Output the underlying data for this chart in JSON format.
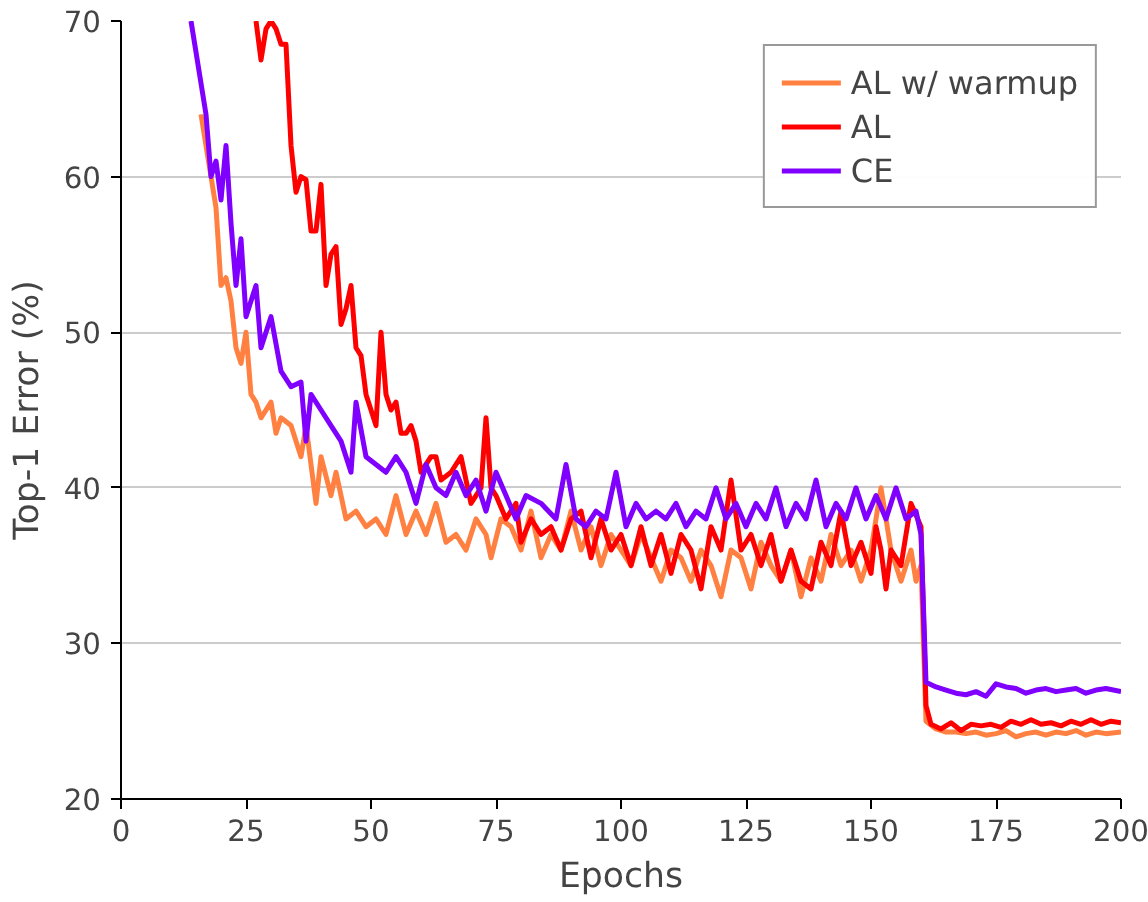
{
  "chart_data": {
    "type": "line",
    "xlabel": "Epochs",
    "ylabel": "Top-1 Error (%)",
    "xlim": [
      0,
      200
    ],
    "ylim": [
      20,
      70
    ],
    "xticks": [
      0,
      25,
      50,
      75,
      100,
      125,
      150,
      175,
      200
    ],
    "yticks": [
      20,
      30,
      40,
      50,
      60,
      70
    ],
    "grid": "y",
    "legend": "top right",
    "marker": "none",
    "line_style": "solid",
    "series": [
      {
        "name": "AL w/ warmup",
        "color": "#ff8040",
        "x": [
          16,
          17,
          19,
          20,
          21,
          22,
          23,
          24,
          25,
          26,
          27,
          28,
          30,
          31,
          32,
          34,
          36,
          37,
          38,
          39,
          40,
          42,
          43,
          45,
          47,
          49,
          51,
          53,
          55,
          57,
          59,
          61,
          63,
          65,
          67,
          69,
          71,
          73,
          74,
          76,
          78,
          80,
          82,
          84,
          86,
          88,
          90,
          92,
          94,
          96,
          98,
          100,
          102,
          104,
          106,
          108,
          110,
          112,
          114,
          116,
          118,
          120,
          122,
          124,
          126,
          128,
          130,
          132,
          134,
          136,
          138,
          140,
          142,
          144,
          146,
          148,
          150,
          152,
          154,
          156,
          158,
          159,
          160,
          161,
          163,
          165,
          167,
          169,
          171,
          173,
          175,
          177,
          179,
          181,
          183,
          185,
          187,
          189,
          191,
          193,
          195,
          197,
          200
        ],
        "values": [
          64,
          62,
          58,
          53,
          53.5,
          52,
          49,
          48,
          50,
          46,
          45.5,
          44.5,
          45.5,
          43.5,
          44.5,
          44,
          42,
          44,
          41.5,
          39,
          42,
          39.5,
          41,
          38,
          38.5,
          37.5,
          38,
          37,
          39.5,
          37,
          38.5,
          37,
          39,
          36.5,
          37,
          36,
          38,
          37,
          35.5,
          38,
          37.5,
          36,
          38.5,
          35.5,
          37,
          36,
          38.5,
          36,
          37.5,
          35,
          37,
          36,
          35,
          37,
          35.5,
          34,
          36,
          35.5,
          34,
          36,
          35,
          33,
          36,
          35.5,
          33.5,
          36.5,
          35,
          34,
          36,
          33,
          35.5,
          34,
          37,
          35,
          36,
          34,
          36,
          40,
          36,
          34,
          36,
          34,
          35,
          25,
          24.5,
          24.3,
          24.3,
          24.2,
          24.3,
          24.1,
          24.2,
          24.4,
          24,
          24.2,
          24.3,
          24.1,
          24.3,
          24.2,
          24.4,
          24.1,
          24.3,
          24.2,
          24.3
        ]
      },
      {
        "name": "AL",
        "color": "#ff0000",
        "x": [
          27,
          28,
          29,
          30,
          31,
          32,
          33,
          34,
          35,
          36,
          37,
          38,
          39,
          40,
          41,
          42,
          43,
          44,
          45,
          46,
          47,
          48,
          49,
          50,
          51,
          52,
          53,
          54,
          55,
          56,
          57,
          58,
          59,
          60,
          61,
          62,
          63,
          64,
          66,
          68,
          69,
          70,
          72,
          73,
          74,
          75,
          77,
          79,
          80,
          82,
          84,
          86,
          88,
          90,
          92,
          94,
          96,
          98,
          100,
          102,
          104,
          106,
          108,
          110,
          112,
          114,
          116,
          118,
          120,
          122,
          124,
          126,
          128,
          130,
          132,
          134,
          136,
          138,
          140,
          142,
          144,
          146,
          148,
          150,
          151,
          152,
          153,
          154,
          156,
          158,
          160,
          161,
          162,
          164,
          166,
          168,
          170,
          172,
          174,
          176,
          178,
          180,
          182,
          184,
          186,
          188,
          190,
          192,
          194,
          196,
          198,
          200
        ],
        "values": [
          70,
          67.5,
          69.5,
          70,
          69.5,
          68.5,
          68.5,
          62,
          59,
          60,
          59.8,
          56.5,
          56.5,
          59.5,
          53,
          55,
          55.5,
          50.5,
          51.5,
          53,
          49,
          48.5,
          46,
          45,
          44,
          50,
          46,
          45,
          45.5,
          43.5,
          43.5,
          44,
          43,
          41,
          41.5,
          42,
          42,
          40.5,
          41,
          42,
          40.5,
          39,
          40,
          44.5,
          40,
          39.5,
          38,
          39,
          36.5,
          38,
          37,
          37.5,
          36,
          38,
          38.5,
          35.5,
          38,
          36,
          37,
          35,
          37.5,
          35,
          37,
          34.5,
          37,
          36,
          33.5,
          37.5,
          36,
          40.5,
          36,
          37,
          35,
          37,
          34,
          36,
          34,
          33.5,
          36.5,
          35,
          38.5,
          35,
          36.5,
          34.5,
          37.5,
          36,
          33.5,
          36,
          35,
          39,
          37.5,
          26,
          24.8,
          24.5,
          24.9,
          24.4,
          24.8,
          24.7,
          24.8,
          24.6,
          25,
          24.8,
          25.1,
          24.8,
          24.9,
          24.7,
          25,
          24.8,
          25.1,
          24.8,
          25,
          24.9
        ]
      },
      {
        "name": "CE",
        "color": "#8000ff",
        "x": [
          14,
          17,
          18,
          19,
          20,
          21,
          22,
          23,
          24,
          25,
          26,
          27,
          28,
          30,
          32,
          34,
          36,
          37,
          38,
          40,
          42,
          44,
          46,
          47,
          49,
          51,
          53,
          55,
          57,
          59,
          61,
          63,
          65,
          67,
          69,
          71,
          73,
          75,
          77,
          79,
          81,
          84,
          87,
          89,
          91,
          93,
          95,
          97,
          99,
          101,
          103,
          105,
          107,
          109,
          111,
          113,
          115,
          117,
          119,
          121,
          123,
          125,
          127,
          129,
          131,
          133,
          135,
          137,
          139,
          141,
          143,
          145,
          147,
          149,
          151,
          153,
          155,
          157,
          159,
          160,
          161,
          163,
          165,
          167,
          169,
          171,
          173,
          175,
          177,
          179,
          181,
          183,
          185,
          187,
          189,
          191,
          193,
          195,
          197,
          200
        ],
        "values": [
          70,
          64,
          60,
          61,
          58.5,
          62,
          57,
          53,
          56,
          51,
          52,
          53,
          49,
          51,
          47.5,
          46.5,
          46.8,
          43,
          46,
          45,
          44,
          43,
          41,
          45.5,
          42,
          41.5,
          41,
          42,
          41,
          39,
          41.5,
          40,
          39.5,
          41,
          39.5,
          40.5,
          38.5,
          41,
          39.5,
          38,
          39.5,
          39,
          38,
          41.5,
          38,
          37.5,
          38.5,
          38,
          41,
          37.5,
          39,
          38,
          38.5,
          38,
          39,
          37.5,
          38.5,
          38,
          40,
          38,
          39,
          37.5,
          39,
          38,
          40,
          37.5,
          39,
          38,
          40.5,
          37.5,
          39,
          38,
          40,
          38,
          39.5,
          38,
          40,
          38,
          38.5,
          37,
          27.5,
          27.2,
          27,
          26.8,
          26.7,
          26.9,
          26.6,
          27.4,
          27.2,
          27.1,
          26.8,
          27,
          27.1,
          26.9,
          27,
          27.1,
          26.8,
          27,
          27.1,
          26.9
        ]
      }
    ]
  }
}
